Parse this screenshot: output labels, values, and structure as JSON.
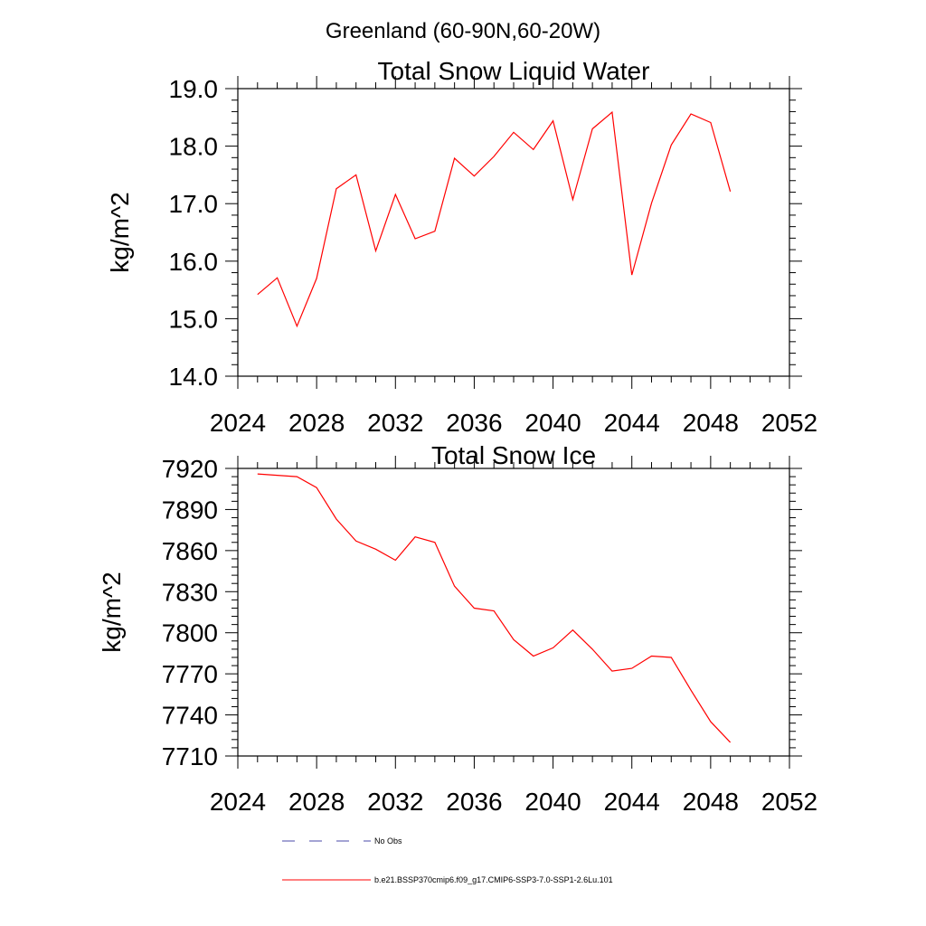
{
  "suptitle": "Greenland (60-90N,60-20W)",
  "chart_data": [
    {
      "type": "line",
      "title": "Total Snow Liquid Water",
      "xlabel": "",
      "ylabel": "kg/m^2",
      "xlim": [
        2024,
        2052
      ],
      "ylim": [
        14.0,
        19.0
      ],
      "xticks": [
        "2024",
        "2028",
        "2032",
        "2036",
        "2040",
        "2044",
        "2048",
        "2052"
      ],
      "yticks": [
        "14.0",
        "15.0",
        "16.0",
        "17.0",
        "18.0",
        "19.0"
      ],
      "x": [
        2025,
        2026,
        2027,
        2028,
        2029,
        2030,
        2031,
        2032,
        2033,
        2034,
        2035,
        2036,
        2037,
        2038,
        2039,
        2040,
        2041,
        2042,
        2043,
        2044,
        2045,
        2046,
        2047,
        2048,
        2049
      ],
      "series": [
        {
          "name": "b.e21.BSSP370cmip6.f09_g17.CMIP6-SSP3-7.0-SSP1-2.6Lu.101",
          "color": "#ff0000",
          "values": [
            15.42,
            15.71,
            14.87,
            15.7,
            17.26,
            17.5,
            16.18,
            17.16,
            16.39,
            16.52,
            17.79,
            17.48,
            17.82,
            18.24,
            17.94,
            18.44,
            17.07,
            18.3,
            18.59,
            15.76,
            17.01,
            18.02,
            18.56,
            18.41,
            17.21
          ]
        }
      ]
    },
    {
      "type": "line",
      "title": "Total Snow Ice",
      "xlabel": "",
      "ylabel": "kg/m^2",
      "xlim": [
        2024,
        2052
      ],
      "ylim": [
        7710,
        7920
      ],
      "xticks": [
        "2024",
        "2028",
        "2032",
        "2036",
        "2040",
        "2044",
        "2048",
        "2052"
      ],
      "yticks": [
        "7710",
        "7740",
        "7770",
        "7800",
        "7830",
        "7860",
        "7890",
        "7920"
      ],
      "x": [
        2025,
        2026,
        2027,
        2028,
        2029,
        2030,
        2031,
        2032,
        2033,
        2034,
        2035,
        2036,
        2037,
        2038,
        2039,
        2040,
        2041,
        2042,
        2043,
        2044,
        2045,
        2046,
        2047,
        2048,
        2049
      ],
      "series": [
        {
          "name": "b.e21.BSSP370cmip6.f09_g17.CMIP6-SSP3-7.0-SSP1-2.6Lu.101",
          "color": "#ff0000",
          "values": [
            7916,
            7915,
            7914,
            7906,
            7883,
            7867,
            7861,
            7853,
            7870,
            7866,
            7834,
            7818,
            7816,
            7795,
            7783,
            7789,
            7802,
            7788,
            7772,
            7774,
            7783,
            7782,
            7758,
            7735,
            7720
          ]
        }
      ]
    }
  ],
  "legend": {
    "items": [
      {
        "label": "No Obs",
        "color": "#4a4aa8",
        "style": "dashed"
      },
      {
        "label": "b.e21.BSSP370cmip6.f09_g17.CMIP6-SSP3-7.0-SSP1-2.6Lu.101",
        "color": "#ff0000",
        "style": "solid"
      }
    ]
  }
}
